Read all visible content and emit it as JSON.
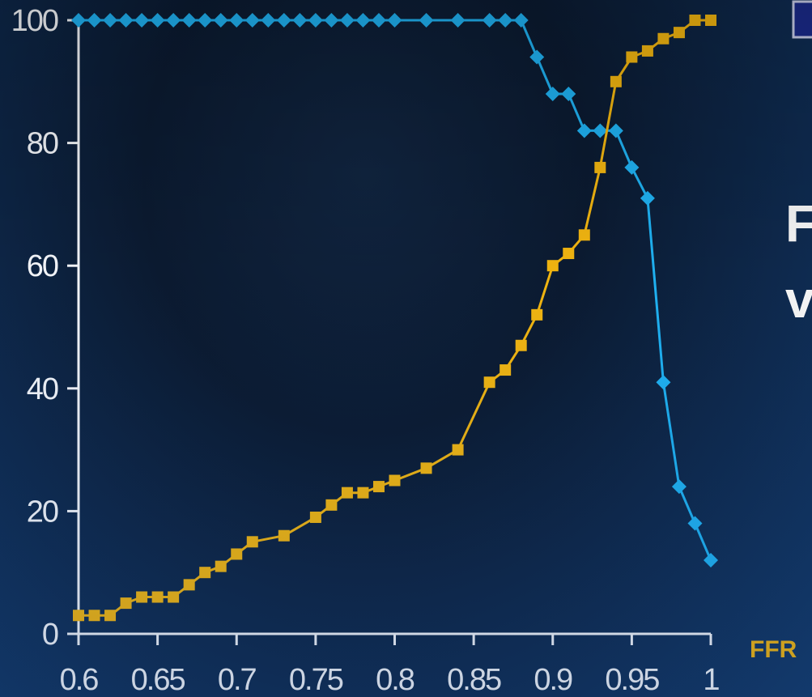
{
  "chart_data": {
    "type": "line",
    "title": "",
    "xlabel": "FFR",
    "ylabel": "",
    "xlim": [
      0.6,
      1.0
    ],
    "ylim": [
      0,
      100
    ],
    "x_ticks": [
      "0.6",
      "0.65",
      "0.7",
      "0.75",
      "0.8",
      "0.85",
      "0.9",
      "0.95",
      "1"
    ],
    "y_ticks": [
      "0",
      "20",
      "40",
      "60",
      "80",
      "100"
    ],
    "grid": false,
    "series": [
      {
        "color": "#1fb0f0",
        "marker": "diamond",
        "points": [
          [
            0.6,
            100
          ],
          [
            0.61,
            100
          ],
          [
            0.62,
            100
          ],
          [
            0.63,
            100
          ],
          [
            0.64,
            100
          ],
          [
            0.65,
            100
          ],
          [
            0.66,
            100
          ],
          [
            0.67,
            100
          ],
          [
            0.68,
            100
          ],
          [
            0.69,
            100
          ],
          [
            0.7,
            100
          ],
          [
            0.71,
            100
          ],
          [
            0.72,
            100
          ],
          [
            0.73,
            100
          ],
          [
            0.74,
            100
          ],
          [
            0.75,
            100
          ],
          [
            0.76,
            100
          ],
          [
            0.77,
            100
          ],
          [
            0.78,
            100
          ],
          [
            0.79,
            100
          ],
          [
            0.8,
            100
          ],
          [
            0.82,
            100
          ],
          [
            0.84,
            100
          ],
          [
            0.86,
            100
          ],
          [
            0.87,
            100
          ],
          [
            0.88,
            100
          ],
          [
            0.89,
            94
          ],
          [
            0.9,
            88
          ],
          [
            0.91,
            88
          ],
          [
            0.92,
            82
          ],
          [
            0.93,
            82
          ],
          [
            0.94,
            82
          ],
          [
            0.95,
            76
          ],
          [
            0.96,
            71
          ],
          [
            0.97,
            41
          ],
          [
            0.98,
            24
          ],
          [
            0.99,
            18
          ],
          [
            1.0,
            12
          ]
        ]
      },
      {
        "color": "#f0b410",
        "marker": "square",
        "points": [
          [
            0.6,
            3
          ],
          [
            0.61,
            3
          ],
          [
            0.62,
            3
          ],
          [
            0.63,
            5
          ],
          [
            0.64,
            6
          ],
          [
            0.65,
            6
          ],
          [
            0.66,
            6
          ],
          [
            0.67,
            8
          ],
          [
            0.68,
            10
          ],
          [
            0.69,
            11
          ],
          [
            0.7,
            13
          ],
          [
            0.71,
            15
          ],
          [
            0.73,
            16
          ],
          [
            0.75,
            19
          ],
          [
            0.76,
            21
          ],
          [
            0.77,
            23
          ],
          [
            0.78,
            23
          ],
          [
            0.79,
            24
          ],
          [
            0.8,
            25
          ],
          [
            0.82,
            27
          ],
          [
            0.84,
            30
          ],
          [
            0.86,
            41
          ],
          [
            0.87,
            43
          ],
          [
            0.88,
            47
          ],
          [
            0.89,
            52
          ],
          [
            0.9,
            60
          ],
          [
            0.91,
            62
          ],
          [
            0.92,
            65
          ],
          [
            0.93,
            76
          ],
          [
            0.94,
            90
          ],
          [
            0.95,
            94
          ],
          [
            0.96,
            95
          ],
          [
            0.97,
            97
          ],
          [
            0.98,
            98
          ],
          [
            0.99,
            100
          ],
          [
            1.0,
            100
          ]
        ]
      }
    ]
  },
  "side_text": {
    "line1": "F",
    "line2": "v"
  },
  "colors": {
    "axis": "#f2f4f8",
    "background": "#0d1c33"
  }
}
